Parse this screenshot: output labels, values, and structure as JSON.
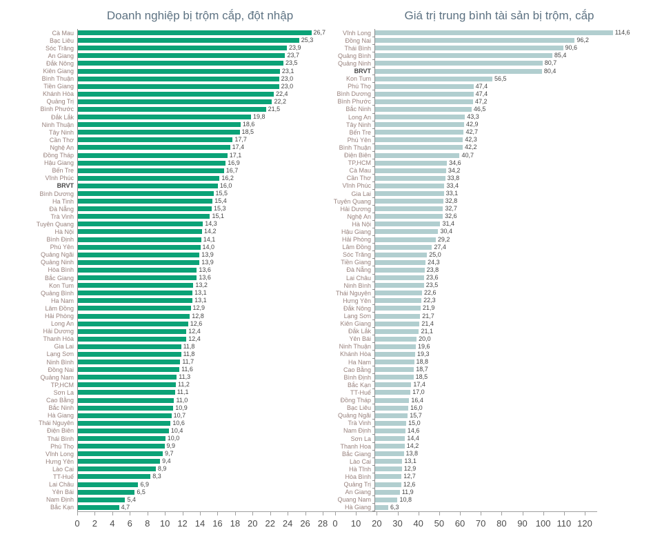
{
  "page": {
    "background": "#ffffff"
  },
  "chart_data": [
    {
      "type": "bar",
      "orientation": "horizontal",
      "title": "Doanh nghiệp bị trộm cắp, đột nhập",
      "title_color": "#5d7282",
      "bar_color": "#0ba277",
      "label_color": "#98827d",
      "value_color": "#454545",
      "xlim": [
        0,
        28
      ],
      "axis_ticks": [
        0,
        2,
        4,
        6,
        8,
        10,
        12,
        14,
        16,
        18,
        20,
        22,
        24,
        26,
        28
      ],
      "grid": false,
      "legend": false,
      "value_format": "one decimal, comma as decimal separator",
      "emphasized_category": "BRVT",
      "categories": [
        "Cà Mau",
        "Bạc Liêu",
        "Sóc Trăng",
        "An Giang",
        "Đắk Nông",
        "Kiên Giang",
        "Bình Thuận",
        "Tiền Giang",
        "Khánh Hòa",
        "Quảng Trị",
        "Bình Phước",
        "Đắk Lắk",
        "Ninh Thuận",
        "Tây Ninh",
        "Cần Thơ",
        "Nghệ An",
        "Đồng Tháp",
        "Hậu Giang",
        "Bến Tre",
        "Vĩnh Phúc",
        "BRVT",
        "Bình Dương",
        "Ha Tinh",
        "Đà Nẵng",
        "Trà Vinh",
        "Tuyên Quang",
        "Hà Nội",
        "Bình Định",
        "Phú Yên",
        "Quảng Ngãi",
        "Quảng Ninh",
        "Hòa Bình",
        "Bắc Giang",
        "Kon Tum",
        "Quảng Bình",
        "Ha Nam",
        "Lâm Đồng",
        "Hải Phòng",
        "Long An",
        "Hải Dương",
        "Thanh Hóa",
        "Gia Lai",
        "Lạng Sơn",
        "Ninh Bình",
        "Đồng Nai",
        "Quảng Nam",
        "TP,HCM",
        "Sơn La",
        "Cao Bằng",
        "Bắc Ninh",
        "Hà Giang",
        "Thái Nguyên",
        "Điện Biên",
        "Thái Bình",
        "Phú Thọ",
        "Vĩnh Long",
        "Hưng Yên",
        "Lào Cai",
        "TT-Huế",
        "Lai Châu",
        "Yên Bái",
        "Nam Định",
        "Bắc Kạn"
      ],
      "values": [
        26.7,
        25.3,
        23.9,
        23.7,
        23.5,
        23.1,
        23.0,
        23.0,
        22.4,
        22.2,
        21.5,
        19.8,
        18.6,
        18.5,
        17.7,
        17.4,
        17.1,
        16.9,
        16.7,
        16.2,
        16.0,
        15.5,
        15.4,
        15.3,
        15.1,
        14.3,
        14.2,
        14.1,
        14.0,
        13.9,
        13.9,
        13.6,
        13.6,
        13.2,
        13.1,
        13.1,
        12.9,
        12.8,
        12.6,
        12.4,
        12.4,
        11.8,
        11.8,
        11.7,
        11.6,
        11.3,
        11.2,
        11.1,
        11.0,
        10.9,
        10.7,
        10.6,
        10.4,
        10.0,
        9.9,
        9.7,
        9.4,
        8.9,
        8.3,
        6.9,
        6.5,
        5.4,
        4.7
      ]
    },
    {
      "type": "bar",
      "orientation": "horizontal",
      "title": "Giá trị trung bình tài sản bị trộm, cắp",
      "title_color": "#5d7282",
      "bar_color": "#b1cecf",
      "label_color": "#98827d",
      "value_color": "#454545",
      "xlim": [
        0,
        120
      ],
      "axis_ticks": [
        0,
        10,
        20,
        30,
        40,
        50,
        60,
        70,
        80,
        90,
        100,
        110,
        120
      ],
      "grid": false,
      "legend": false,
      "value_format": "one decimal, comma as decimal separator",
      "emphasized_category": "BRVT",
      "categories": [
        "Vĩnh Long",
        "Đồng Nai",
        "Thái Bình",
        "Quảng Bình",
        "Quảng Ninh",
        "BRVT",
        "Kon Tum",
        "Phú Thọ",
        "Bình Dương",
        "Bình Phước",
        "Bắc Ninh",
        "Long An",
        "Tây Ninh",
        "Bến Tre",
        "Phú Yên",
        "Bình Thuận",
        "Điện Biên",
        "TP,HCM",
        "Cà Mau",
        "Cần Thơ",
        "Vĩnh Phúc",
        "Gia Lai",
        "Tuyên Quang",
        "Hải Dương",
        "Nghệ An",
        "Hà Nội",
        "Hậu Giang",
        "Hải Phòng",
        "Lâm Đồng",
        "Sóc Trăng",
        "Tiền Giang",
        "Đà Nẵng",
        "Lai Châu",
        "Ninh Bình",
        "Thái Nguyên",
        "Hưng Yên",
        "Đắk Nông",
        "Lạng Sơn",
        "Kiên Giang",
        "Đắk Lắk",
        "Yên Bái",
        "Ninh Thuận",
        "Khánh Hòa",
        "Ha Nam",
        "Cao Bằng",
        "Bình Định",
        "Bắc Kạn",
        "TT-Huế",
        "Đồng Tháp",
        "Bạc Liêu",
        "Quảng Ngãi",
        "Trà Vinh",
        "Nam Định",
        "Sơn La",
        "Thanh Hoa",
        "Bắc Giang",
        "Lào Cai",
        "Hà Tĩnh",
        "Hòa Bình",
        "Quảng Trị",
        "An Giang",
        "Quang Nam",
        "Hà Giang"
      ],
      "values": [
        114.6,
        96.2,
        90.6,
        85.4,
        80.7,
        80.4,
        56.5,
        47.4,
        47.4,
        47.2,
        46.5,
        43.3,
        42.9,
        42.7,
        42.3,
        42.2,
        40.7,
        34.6,
        34.2,
        33.8,
        33.4,
        33.1,
        32.8,
        32.7,
        32.6,
        31.4,
        30.4,
        29.2,
        27.4,
        25.0,
        24.3,
        23.8,
        23.6,
        23.5,
        22.6,
        22.3,
        21.9,
        21.7,
        21.4,
        21.1,
        20.0,
        19.6,
        19.3,
        18.8,
        18.7,
        18.5,
        17.4,
        17.0,
        16.4,
        16.0,
        15.7,
        15.0,
        14.6,
        14.4,
        14.2,
        13.8,
        13.1,
        12.9,
        12.7,
        12.6,
        11.9,
        10.8,
        6.3
      ]
    }
  ]
}
